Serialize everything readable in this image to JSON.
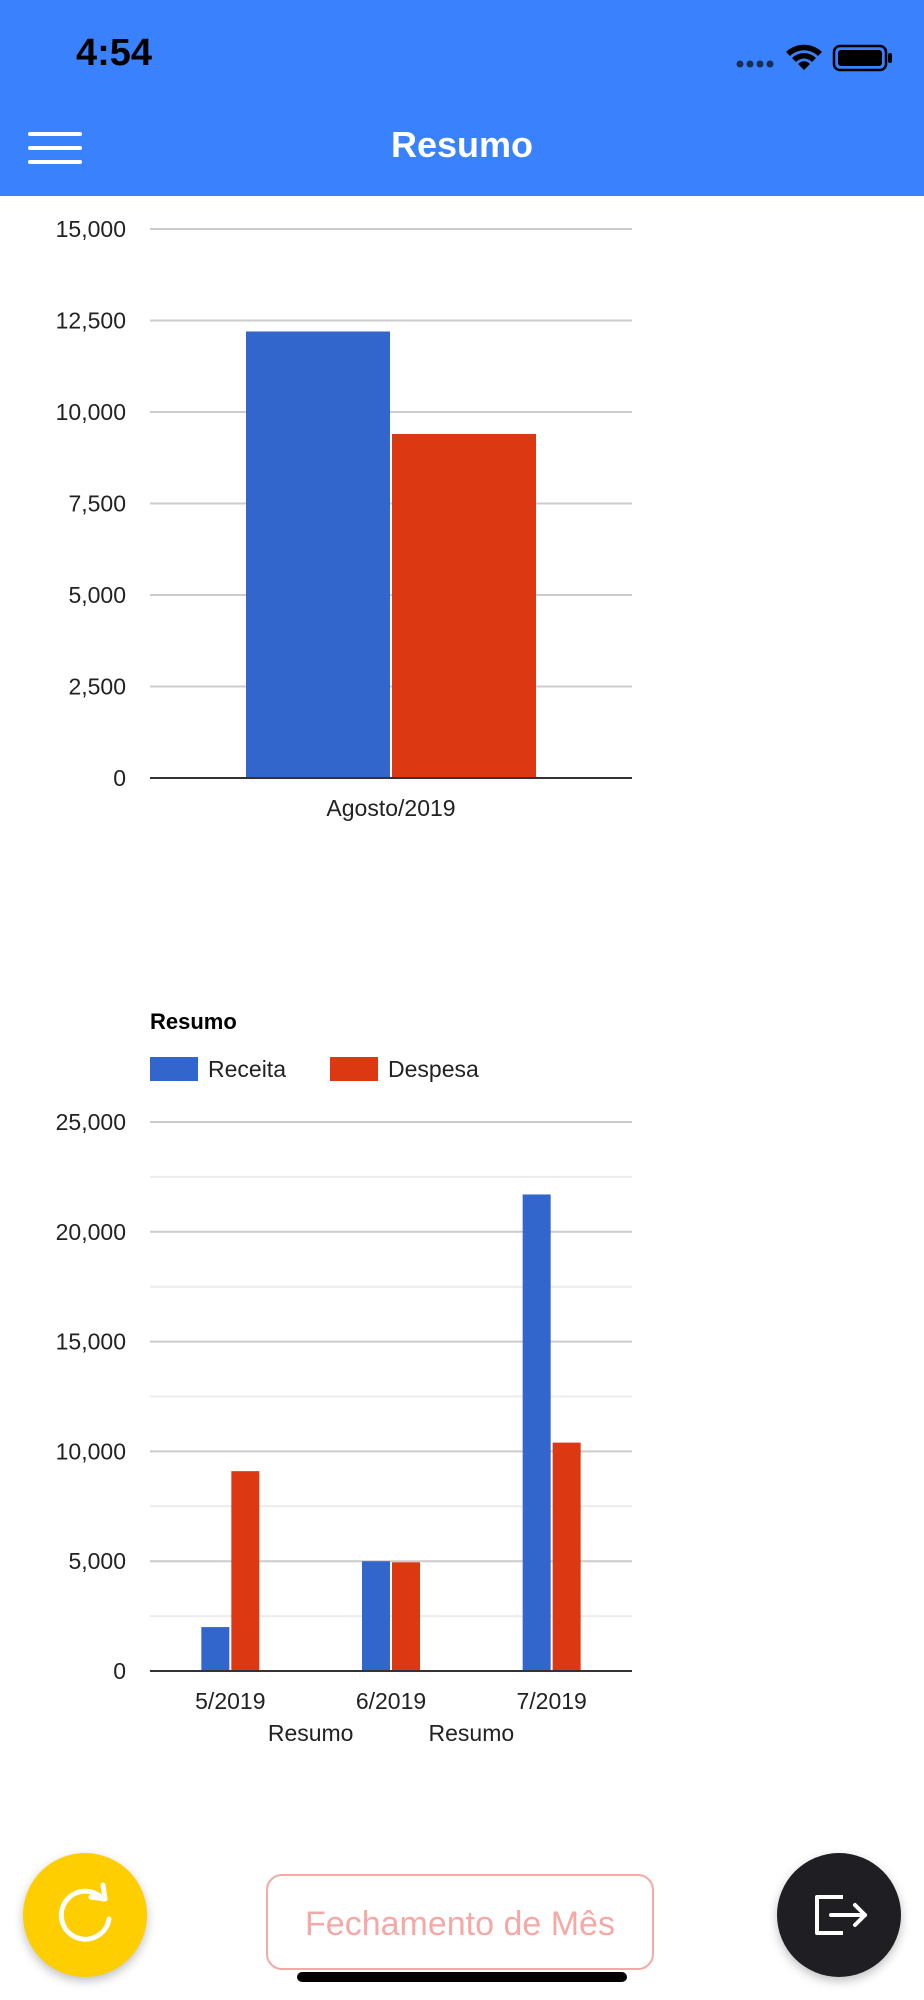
{
  "status_bar": {
    "time": "4:54",
    "icons": [
      "signal-dots-icon",
      "wifi-icon",
      "battery-icon"
    ]
  },
  "header": {
    "title": "Resumo",
    "menu_icon": "hamburger-menu-icon",
    "color": "#3a81fe"
  },
  "colors": {
    "receita": "#3366cc",
    "despesa": "#dc3912"
  },
  "chart_data": [
    {
      "type": "bar",
      "categories": [
        "Agosto/2019"
      ],
      "series": [
        {
          "values": [
            12200
          ]
        },
        {
          "values": [
            9400
          ]
        }
      ],
      "ylim": [
        0,
        15000
      ],
      "yticks": [
        "0",
        "2,500",
        "5,000",
        "7,500",
        "10,000",
        "12,500",
        "15,000"
      ],
      "legend": "none",
      "grid": true
    },
    {
      "type": "bar",
      "title": "Resumo",
      "categories": [
        "5/2019",
        "6/2019",
        "7/2019"
      ],
      "x_sublabels": [
        "Resumo",
        "Resumo"
      ],
      "series": [
        {
          "name": "Receita",
          "values": [
            2000,
            5000,
            21700
          ]
        },
        {
          "name": "Despesa",
          "values": [
            9100,
            4950,
            10400
          ]
        }
      ],
      "ylim": [
        0,
        25000
      ],
      "yticks": [
        "0",
        "5,000",
        "10,000",
        "15,000",
        "20,000",
        "25,000"
      ],
      "legend": "top-left",
      "grid": true
    }
  ],
  "footer": {
    "refresh_icon": "refresh-icon",
    "close_month_label": "Fechamento de Mês",
    "logout_icon": "logout-icon"
  }
}
